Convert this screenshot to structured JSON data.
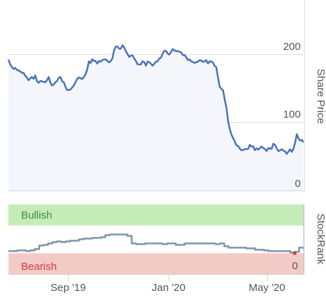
{
  "chart_data": [
    {
      "type": "line",
      "ylabel": "Share Price",
      "yticks": [
        0,
        100,
        200
      ],
      "ylim": [
        0,
        280
      ],
      "xticks": [
        "Sep '19",
        "Jan '20",
        "May '20"
      ],
      "grid": true,
      "fill": "area",
      "colors": {
        "line": "#4a72b8",
        "fill": "#f4f6fb",
        "grid": "#dddddd"
      },
      "series": [
        {
          "values": [
            190,
            183,
            178,
            176,
            172,
            168,
            162,
            165,
            168,
            158,
            162,
            160,
            165,
            156,
            160,
            165,
            162,
            152,
            148,
            150,
            160,
            166,
            164,
            170,
            188,
            192,
            190,
            188,
            190,
            192,
            190,
            195,
            210,
            208,
            212,
            205,
            198,
            200,
            190,
            186,
            190,
            185,
            188,
            182,
            190,
            195,
            200,
            205,
            198,
            206,
            204,
            202,
            200,
            196,
            192,
            190,
            188,
            190,
            188,
            190,
            188,
            186,
            182,
            150,
            145,
            120,
            90,
            75,
            65,
            60,
            58,
            60,
            65,
            62,
            60,
            62,
            60,
            58,
            60,
            66,
            62,
            58,
            56,
            52,
            58,
            60,
            82,
            72,
            70
          ]
        }
      ]
    },
    {
      "type": "line",
      "ylabel": "StockRank",
      "yticks": [
        0
      ],
      "ylim": [
        0,
        100
      ],
      "bands": [
        {
          "label": "Bullish",
          "range": [
            70,
            100
          ],
          "color": "#c5ecb7",
          "text_color": "#3f8c3f"
        },
        {
          "label": "Bearish",
          "range": [
            0,
            30
          ],
          "color": "#f3cbc6",
          "text_color": "#cf3d3d"
        }
      ],
      "colors": {
        "line": "#7f93ad"
      },
      "series": [
        {
          "values": [
            33,
            33,
            34,
            34,
            33,
            34,
            36,
            41,
            42,
            44,
            46,
            47,
            46,
            47,
            48,
            48,
            50,
            51,
            51,
            52,
            52,
            53,
            56,
            57,
            57,
            57,
            57,
            55,
            44,
            43,
            43,
            44,
            44,
            44,
            44,
            43,
            44,
            44,
            42,
            42,
            44,
            44,
            44,
            44,
            44,
            44,
            44,
            43,
            44,
            40,
            38,
            38,
            38,
            38,
            37,
            37,
            35,
            35,
            34,
            33,
            33,
            33,
            33,
            33,
            31,
            32,
            38,
            36
          ]
        }
      ],
      "xticks": [
        "Sep '19",
        "Jan '20",
        "May '20"
      ]
    }
  ]
}
